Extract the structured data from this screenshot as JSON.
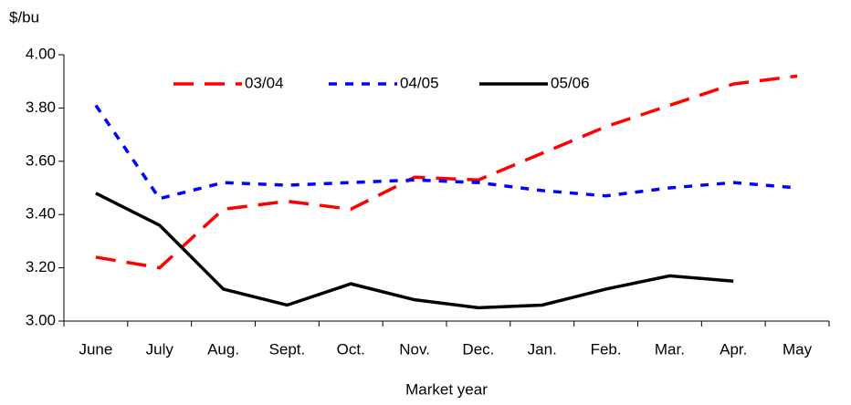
{
  "chart_data": {
    "type": "line",
    "y_label": "$/bu",
    "x_label": "Market year",
    "categories": [
      "June",
      "July",
      "Aug.",
      "Sept.",
      "Oct.",
      "Nov.",
      "Dec.",
      "Jan.",
      "Feb.",
      "Mar.",
      "Apr.",
      "May"
    ],
    "series": [
      {
        "name": "03/04",
        "color": "#ff0000",
        "dash": "dashed",
        "values": [
          3.24,
          3.2,
          3.42,
          3.45,
          3.42,
          3.54,
          3.53,
          3.63,
          3.73,
          3.81,
          3.89,
          3.92
        ]
      },
      {
        "name": "04/05",
        "color": "#0000ff",
        "dash": "dotted",
        "values": [
          3.81,
          3.46,
          3.52,
          3.51,
          3.52,
          3.53,
          3.52,
          3.49,
          3.47,
          3.5,
          3.52,
          3.5
        ]
      },
      {
        "name": "05/06",
        "color": "#000000",
        "dash": "solid",
        "values": [
          3.48,
          3.36,
          3.12,
          3.06,
          3.14,
          3.08,
          3.05,
          3.06,
          3.12,
          3.17,
          3.15,
          null
        ]
      }
    ],
    "ylim": [
      3.0,
      4.0
    ],
    "yticks": [
      {
        "value": 3.0,
        "label": "3.00"
      },
      {
        "value": 3.2,
        "label": "3.20"
      },
      {
        "value": 3.4,
        "label": "3.40"
      },
      {
        "value": 3.6,
        "label": "3.60"
      },
      {
        "value": 3.8,
        "label": "3.80"
      },
      {
        "value": 4.0,
        "label": "4.00"
      }
    ],
    "legend": "top"
  }
}
